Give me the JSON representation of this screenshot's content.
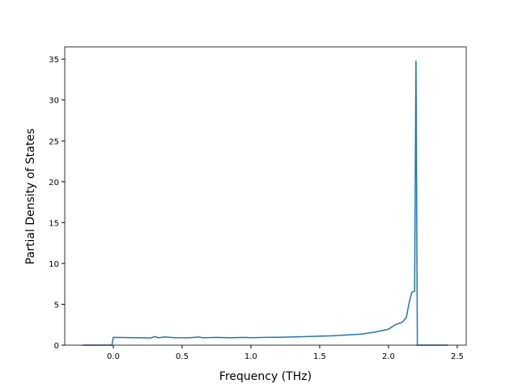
{
  "chart_data": {
    "type": "line",
    "x_label": "Frequency (THz)",
    "y_label": "Partial Density of States",
    "x": [
      -0.22,
      -0.01,
      0.0,
      0.1,
      0.2,
      0.27,
      0.3,
      0.33,
      0.37,
      0.45,
      0.55,
      0.62,
      0.65,
      0.75,
      0.85,
      0.95,
      1.0,
      1.1,
      1.2,
      1.3,
      1.4,
      1.5,
      1.6,
      1.7,
      1.8,
      1.9,
      2.0,
      2.05,
      2.1,
      2.13,
      2.15,
      2.17,
      2.19,
      2.2,
      2.21,
      2.3,
      2.43
    ],
    "series": [
      {
        "name": "PDOS",
        "color": "#1f77b4",
        "values": [
          0,
          0,
          0.95,
          0.93,
          0.9,
          0.88,
          1.05,
          0.9,
          1.0,
          0.92,
          0.9,
          1.0,
          0.9,
          0.95,
          0.9,
          0.95,
          0.92,
          0.95,
          0.97,
          1.0,
          1.05,
          1.1,
          1.15,
          1.25,
          1.35,
          1.6,
          1.95,
          2.5,
          2.8,
          3.4,
          5.2,
          6.5,
          6.6,
          34.8,
          0,
          0,
          0
        ]
      }
    ],
    "xlim": [
      -0.353,
      2.565
    ],
    "ylim": [
      0,
      36.5
    ],
    "xticks": [
      {
        "value": 0,
        "label": "0.0"
      },
      0.5,
      {
        "value": 1,
        "label": "1.0"
      },
      1.5,
      {
        "value": 2,
        "label": "2.0"
      },
      2.5
    ],
    "yticks": [
      0,
      5,
      10,
      15,
      20,
      25,
      30,
      35
    ]
  }
}
